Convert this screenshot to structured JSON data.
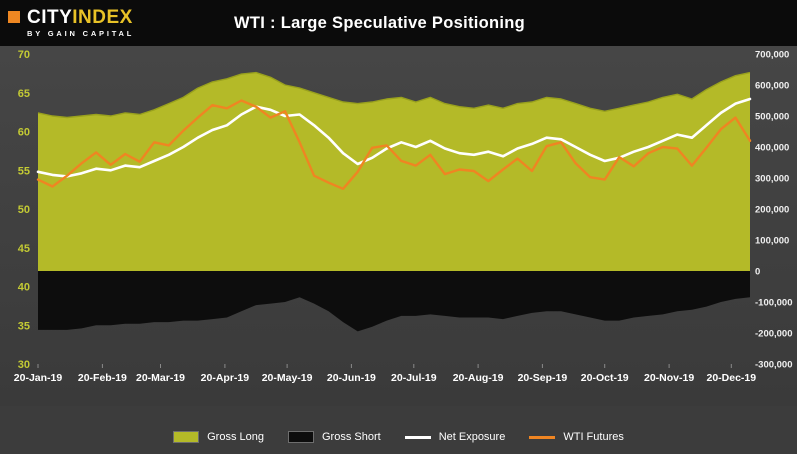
{
  "header": {
    "logo": {
      "city": "CITY",
      "index": "INDEX",
      "byline": "BY GAIN CAPITAL"
    },
    "title": "WTI : Large Speculative Positioning"
  },
  "colors": {
    "background": "#3c3c3c",
    "header_bg": "#0b0b0b",
    "gross_long": "#b4ba28",
    "gross_long_edge": "#99a11d",
    "gross_short": "#0d0d0d",
    "net_exposure": "#ffffff",
    "wti_futures": "#ef8522",
    "left_axis_text": "#c3ca34",
    "right_axis_text": "#f0f0f0",
    "x_axis_text": "#ffffff",
    "logo_accent": "#ee8722",
    "logo_index": "#e8c227"
  },
  "chart_data": {
    "type": "area+line",
    "title": "WTI : Large Speculative Positioning",
    "grid": false,
    "legend_position": "bottom",
    "left_axis": {
      "min": 30,
      "max": 70,
      "ticks": [
        {
          "value": 70,
          "label": "70"
        },
        {
          "value": 65,
          "label": "65"
        },
        {
          "value": 60,
          "label": "60"
        },
        {
          "value": 55,
          "label": "55"
        },
        {
          "value": 50,
          "label": "50"
        },
        {
          "value": 45,
          "label": "45"
        },
        {
          "value": 40,
          "label": "40"
        },
        {
          "value": 35,
          "label": "35"
        },
        {
          "value": 30,
          "label": "30"
        }
      ]
    },
    "right_axis": {
      "min": -300000,
      "max": 700000,
      "ticks": [
        {
          "value": 700000,
          "label": "700,000"
        },
        {
          "value": 600000,
          "label": "600,000"
        },
        {
          "value": 500000,
          "label": "500,000"
        },
        {
          "value": 400000,
          "label": "400,000"
        },
        {
          "value": 300000,
          "label": "300,000"
        },
        {
          "value": 200000,
          "label": "200,000"
        },
        {
          "value": 100000,
          "label": "100,000"
        },
        {
          "value": 0,
          "label": "0"
        },
        {
          "value": -100000,
          "label": "-100,000"
        },
        {
          "value": -200000,
          "label": "-200,000"
        },
        {
          "value": -300000,
          "label": "-300,000"
        }
      ]
    },
    "x_axis": {
      "ticks": [
        {
          "pos": 0.0,
          "label": "20-Jan-19"
        },
        {
          "pos": 4.43,
          "label": "20-Feb-19"
        },
        {
          "pos": 8.43,
          "label": "20-Mar-19"
        },
        {
          "pos": 12.86,
          "label": "20-Apr-19"
        },
        {
          "pos": 17.14,
          "label": "20-May-19"
        },
        {
          "pos": 21.57,
          "label": "20-Jun-19"
        },
        {
          "pos": 25.86,
          "label": "20-Jul-19"
        },
        {
          "pos": 30.29,
          "label": "20-Aug-19"
        },
        {
          "pos": 34.71,
          "label": "20-Sep-19"
        },
        {
          "pos": 39.0,
          "label": "20-Oct-19"
        },
        {
          "pos": 43.43,
          "label": "20-Nov-19"
        },
        {
          "pos": 47.71,
          "label": "20-Dec-19"
        }
      ]
    },
    "series": [
      {
        "name": "Gross Long",
        "type": "area",
        "axis": "right",
        "color_key": "gross_long",
        "values": [
          510000,
          500000,
          495000,
          500000,
          505000,
          500000,
          510000,
          505000,
          520000,
          540000,
          560000,
          590000,
          610000,
          620000,
          635000,
          640000,
          625000,
          600000,
          590000,
          575000,
          560000,
          545000,
          540000,
          545000,
          555000,
          560000,
          545000,
          560000,
          540000,
          530000,
          525000,
          535000,
          525000,
          540000,
          545000,
          560000,
          555000,
          540000,
          525000,
          515000,
          525000,
          535000,
          545000,
          560000,
          570000,
          555000,
          585000,
          610000,
          630000,
          640000
        ]
      },
      {
        "name": "Gross Short",
        "type": "area",
        "axis": "right",
        "color_key": "gross_short",
        "values": [
          -190000,
          -190000,
          -190000,
          -185000,
          -175000,
          -175000,
          -170000,
          -170000,
          -165000,
          -165000,
          -160000,
          -160000,
          -155000,
          -150000,
          -130000,
          -110000,
          -105000,
          -100000,
          -85000,
          -105000,
          -130000,
          -165000,
          -195000,
          -180000,
          -160000,
          -145000,
          -145000,
          -140000,
          -145000,
          -150000,
          -150000,
          -150000,
          -155000,
          -145000,
          -135000,
          -130000,
          -130000,
          -140000,
          -150000,
          -160000,
          -160000,
          -150000,
          -145000,
          -140000,
          -130000,
          -125000,
          -115000,
          -100000,
          -90000,
          -85000
        ]
      },
      {
        "name": "Net Exposure",
        "type": "line",
        "axis": "right",
        "color_key": "net_exposure",
        "values": [
          320000,
          310000,
          305000,
          315000,
          330000,
          325000,
          340000,
          335000,
          355000,
          375000,
          400000,
          430000,
          455000,
          470000,
          505000,
          530000,
          520000,
          500000,
          505000,
          470000,
          430000,
          380000,
          345000,
          365000,
          395000,
          415000,
          400000,
          420000,
          395000,
          380000,
          375000,
          385000,
          370000,
          395000,
          410000,
          430000,
          425000,
          400000,
          375000,
          355000,
          365000,
          385000,
          400000,
          420000,
          440000,
          430000,
          470000,
          510000,
          540000,
          555000
        ]
      },
      {
        "name": "WTI Futures",
        "type": "line",
        "axis": "left",
        "color_key": "wti_futures",
        "values": [
          53.8,
          52.9,
          54.3,
          55.9,
          57.3,
          55.7,
          57.1,
          56.1,
          58.6,
          58.2,
          60.1,
          61.8,
          63.4,
          63.0,
          64.0,
          63.2,
          61.8,
          62.6,
          58.6,
          54.3,
          53.4,
          52.6,
          54.8,
          57.9,
          58.2,
          56.2,
          55.6,
          57.0,
          54.5,
          55.1,
          54.9,
          53.6,
          55.1,
          56.5,
          54.9,
          58.1,
          58.6,
          55.9,
          54.1,
          53.8,
          56.7,
          55.5,
          57.2,
          58.0,
          57.8,
          55.6,
          57.9,
          60.3,
          61.8,
          58.8
        ]
      }
    ]
  },
  "legend": {
    "items": [
      {
        "label": "Gross Long",
        "swatch": "area",
        "color_key": "gross_long"
      },
      {
        "label": "Gross Short",
        "swatch": "area",
        "color_key": "gross_short"
      },
      {
        "label": "Net Exposure",
        "swatch": "line",
        "color_key": "net_exposure"
      },
      {
        "label": "WTI Futures",
        "swatch": "line",
        "color_key": "wti_futures"
      }
    ]
  }
}
